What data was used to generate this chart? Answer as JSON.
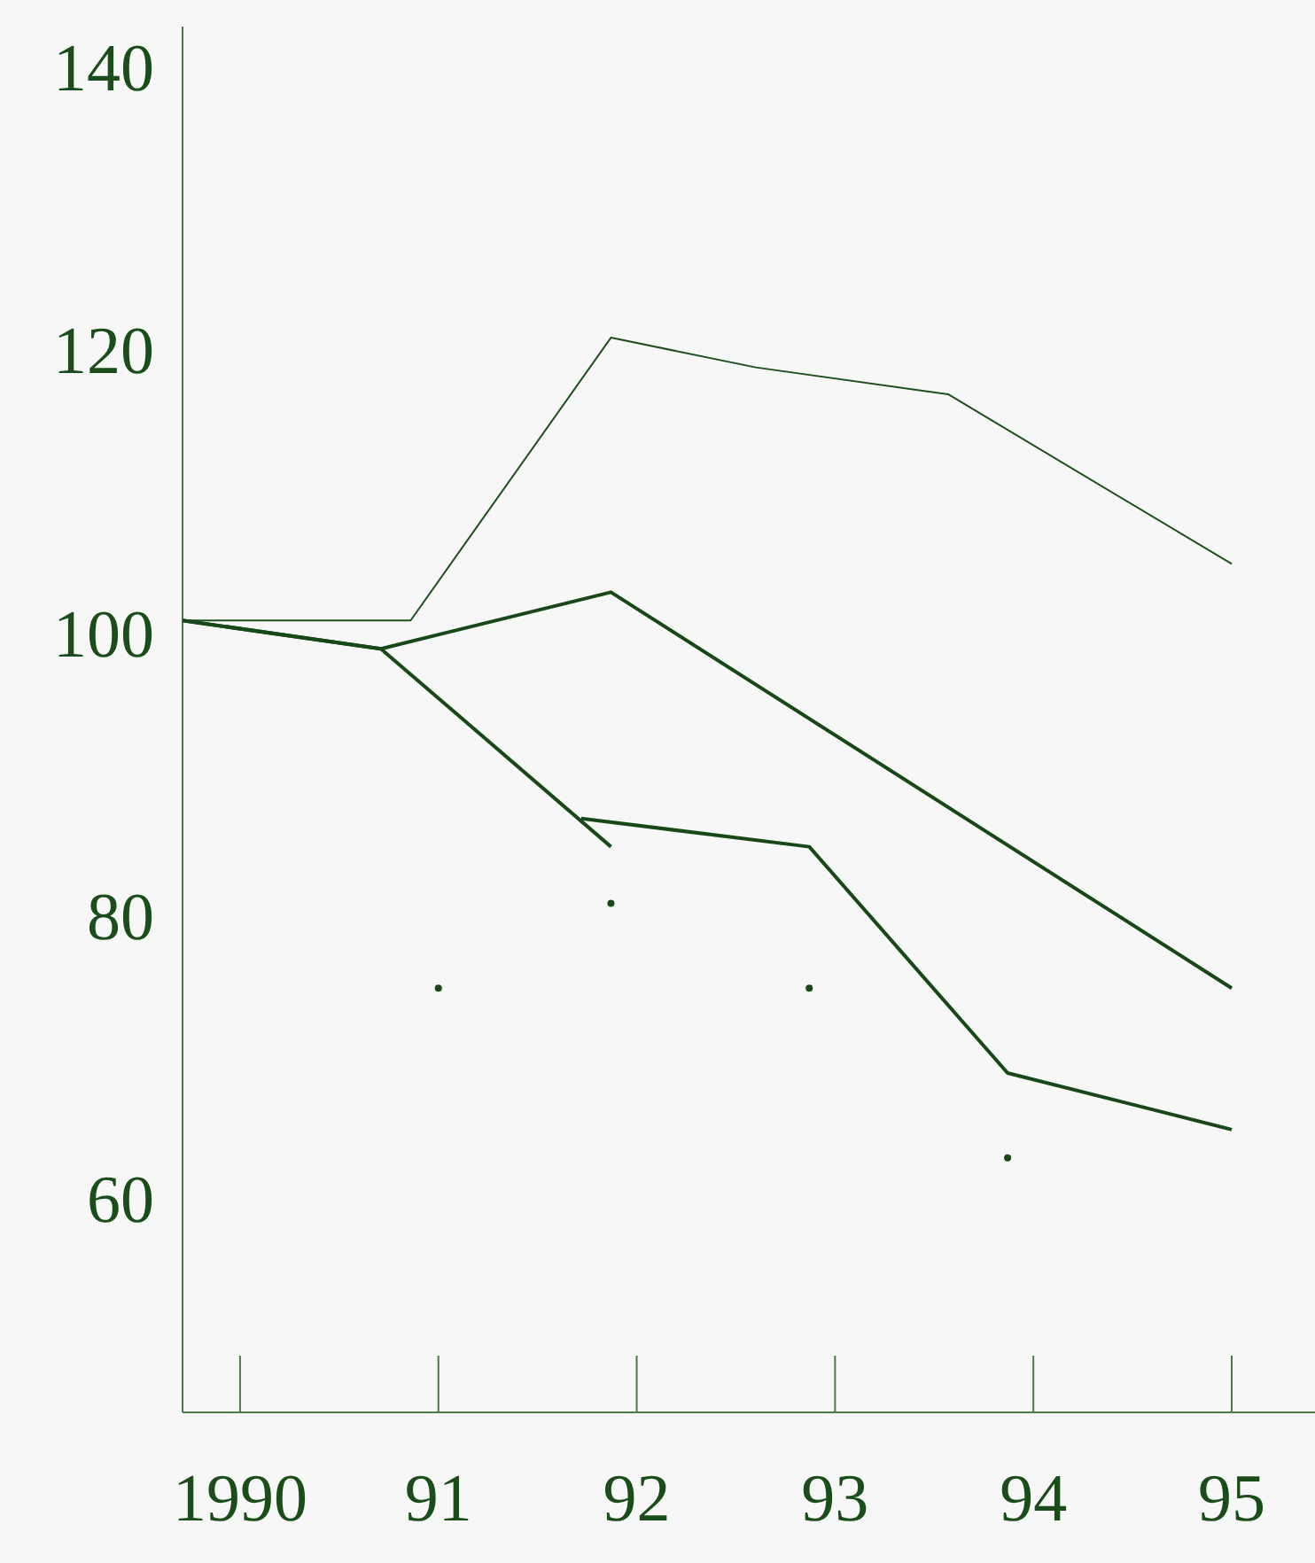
{
  "chart_data": {
    "type": "line",
    "xlim": [
      1989.71,
      1995.42
    ],
    "ylim": [
      45,
      143
    ],
    "xticks": [
      {
        "value": 1990,
        "label": "1990"
      },
      {
        "value": 1991,
        "label": "91"
      },
      {
        "value": 1992,
        "label": "92"
      },
      {
        "value": 1993,
        "label": "93"
      },
      {
        "value": 1994,
        "label": "94"
      },
      {
        "value": 1995,
        "label": "95"
      }
    ],
    "yticks": [
      60,
      80,
      100,
      120,
      140
    ],
    "grid": false,
    "line_style": "solid",
    "series": [
      {
        "color": "#1f4f1f",
        "x": [
          1989.71,
          1990.86,
          1991.87,
          1992.6,
          1993.57,
          1995
        ],
        "values": [
          101,
          101,
          121,
          118.9,
          117,
          105
        ]
      },
      {
        "color": "#184818",
        "x": [
          1989.71,
          1990.71,
          1991.87,
          1995
        ],
        "values": [
          101,
          99,
          103,
          75
        ]
      },
      {
        "color": "#184818",
        "x": [
          1989.71,
          1990.71,
          1991.87
        ],
        "values": [
          101,
          99,
          85
        ]
      },
      {
        "color": "#184818",
        "x": [
          1991.72,
          1992.87,
          1993.87,
          1995
        ],
        "values": [
          87,
          85,
          69,
          65
        ]
      },
      {
        "type": "scatter",
        "color": "#184818",
        "x": [
          1991,
          1991.87,
          1992.87,
          1993.87
        ],
        "values": [
          75,
          81,
          75,
          63
        ]
      }
    ]
  }
}
